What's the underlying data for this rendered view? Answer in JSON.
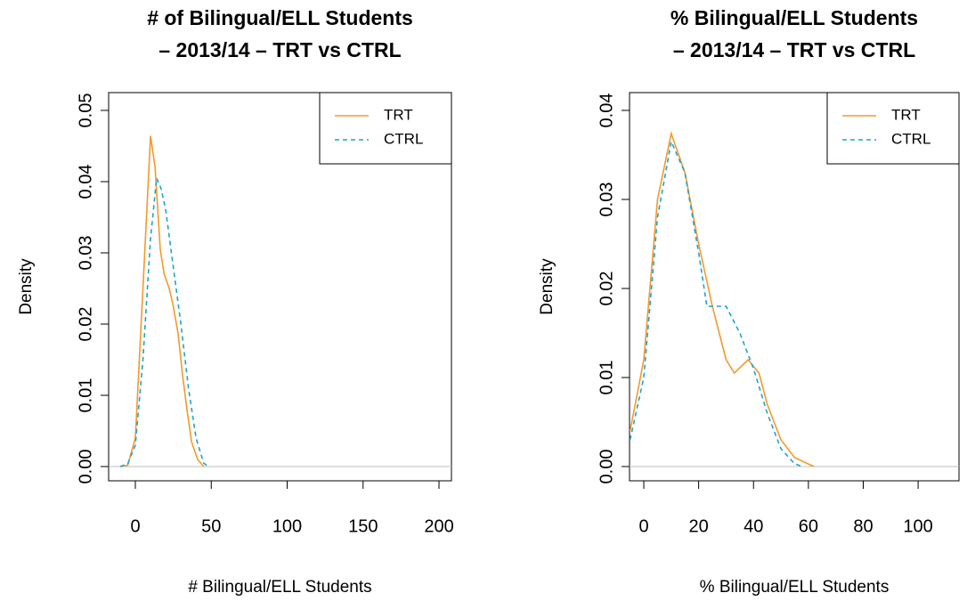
{
  "chart_data": [
    {
      "type": "line",
      "title": [
        "# of Bilingual/ELL Students",
        "– 2013/14 – TRT vs CTRL"
      ],
      "x_label": "# Bilingual/ELL Students",
      "y_label": "Density",
      "xlim": [
        -17.6,
        208.2
      ],
      "xticks": [
        0,
        50,
        100,
        150,
        200
      ],
      "ylim": [
        -0.002,
        0.0525
      ],
      "yticks": [
        {
          "value": 0,
          "label": "0.00"
        },
        0.01,
        0.02,
        0.03,
        0.04,
        0.05
      ],
      "legend": "top-right",
      "baseline": true,
      "series": [
        {
          "name": "TRT",
          "color": "#f39a2b",
          "linestyle": "solid",
          "x": [
            -10,
            -5,
            0,
            5,
            10,
            13,
            16.4,
            19,
            22.3,
            25,
            28.2,
            31,
            34,
            37,
            41,
            45
          ],
          "values": [
            0,
            0.0002,
            0.004,
            0.025,
            0.0464,
            0.042,
            0.0305,
            0.027,
            0.025,
            0.0225,
            0.0186,
            0.013,
            0.008,
            0.0035,
            0.001,
            0
          ]
        },
        {
          "name": "CTRL",
          "color": "#1fa3d2",
          "linestyle": "dashed",
          "x": [
            -10,
            -5,
            0,
            5,
            10,
            14,
            17,
            20,
            25,
            30,
            35,
            40,
            45,
            48
          ],
          "values": [
            0,
            0.0004,
            0.003,
            0.015,
            0.032,
            0.0405,
            0.039,
            0.036,
            0.028,
            0.02,
            0.011,
            0.004,
            0.0005,
            0
          ]
        }
      ]
    },
    {
      "type": "line",
      "title": [
        "% Bilingual/ELL Students",
        "– 2013/14 – TRT vs CTRL"
      ],
      "x_label": "% Bilingual/ELL Students",
      "y_label": "Density",
      "xlim": [
        -5.2,
        114.9
      ],
      "xticks": [
        0,
        20,
        40,
        60,
        80,
        100
      ],
      "ylim": [
        -0.0016,
        0.042
      ],
      "yticks": [
        {
          "value": 0,
          "label": "0.00"
        },
        0.01,
        0.02,
        0.03,
        0.04
      ],
      "legend": "top-right",
      "baseline": true,
      "series": [
        {
          "name": "TRT",
          "color": "#f39a2b",
          "linestyle": "solid",
          "x": [
            -5,
            0,
            5,
            10,
            15,
            20,
            25,
            30,
            33,
            38,
            42,
            45,
            50,
            55,
            62
          ],
          "values": [
            0.004,
            0.012,
            0.03,
            0.0374,
            0.033,
            0.025,
            0.018,
            0.012,
            0.0105,
            0.012,
            0.0105,
            0.007,
            0.003,
            0.001,
            0
          ]
        },
        {
          "name": "CTRL",
          "color": "#1fa3d2",
          "linestyle": "dashed",
          "x": [
            -5,
            0,
            5,
            10,
            15,
            20,
            23,
            30,
            35,
            40,
            45,
            50,
            55,
            58
          ],
          "values": [
            0.003,
            0.01,
            0.028,
            0.0365,
            0.033,
            0.024,
            0.018,
            0.018,
            0.015,
            0.011,
            0.006,
            0.002,
            0.0003,
            0
          ]
        }
      ]
    }
  ]
}
